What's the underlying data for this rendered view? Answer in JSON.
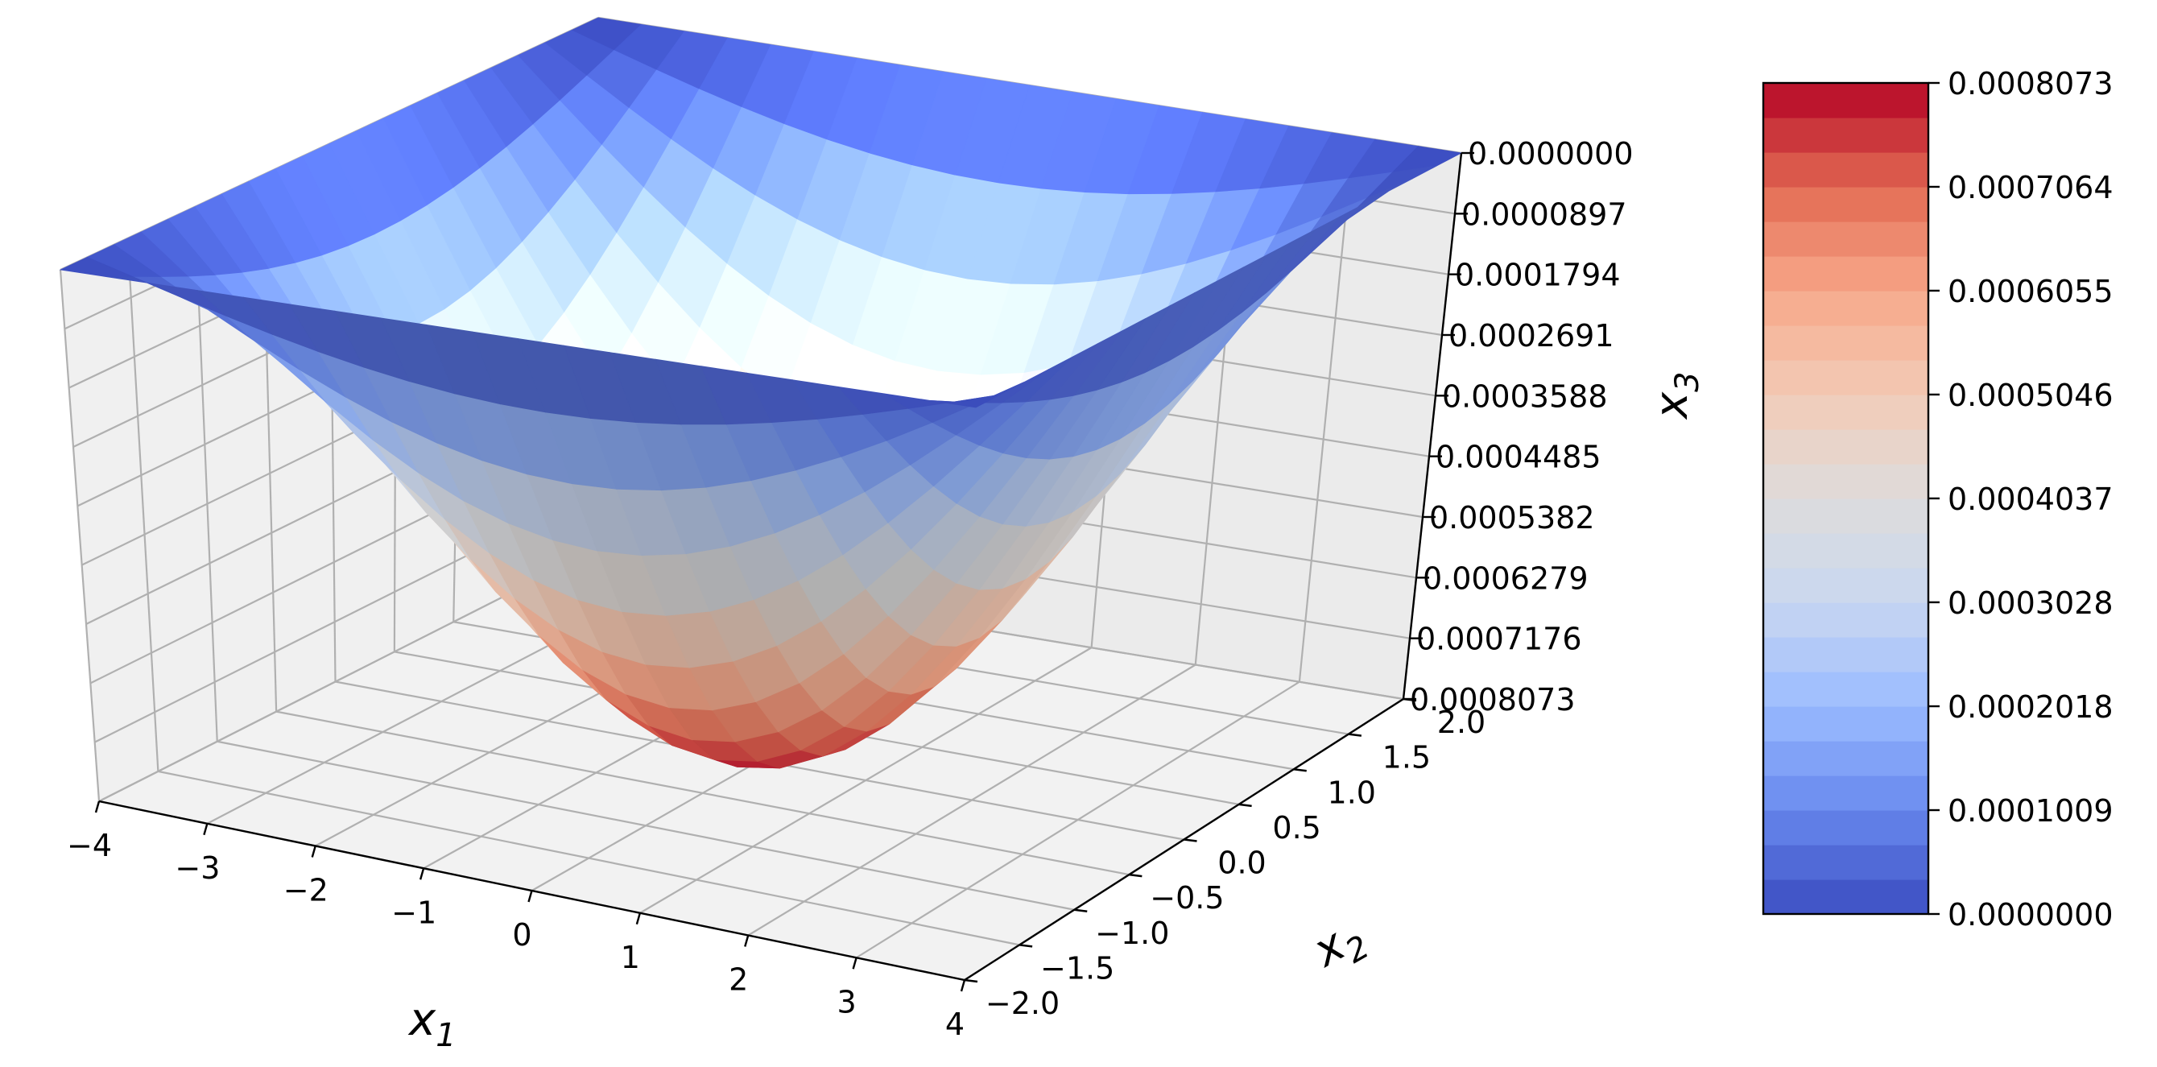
{
  "chart_data": {
    "type": "surface3d",
    "title": "",
    "colormap": "coolwarm",
    "colormap_stops": [
      "#3b4cc0",
      "#6788ee",
      "#9abbff",
      "#c9d7f0",
      "#dddcdc",
      "#f2cbb7",
      "#f7a889",
      "#e26952",
      "#b40426"
    ],
    "axes": {
      "x": {
        "label": "x",
        "label_sub": "1",
        "range": [
          -4,
          4
        ],
        "ticks": [
          "−4",
          "−3",
          "−2",
          "−1",
          "0",
          "1",
          "2",
          "3",
          "4"
        ]
      },
      "y": {
        "label": "x",
        "label_sub": "2",
        "range": [
          -2,
          2
        ],
        "ticks": [
          "−2.0",
          "−1.5",
          "−1.0",
          "−0.5",
          "0.0",
          "0.5",
          "1.0",
          "1.5",
          "2.0"
        ]
      },
      "z": {
        "label": "x",
        "label_sub": "3",
        "inverted": true,
        "range": [
          0.0,
          0.0008073
        ],
        "ticks": [
          "0.0000000",
          "0.0000897",
          "0.0001794",
          "0.0002691",
          "0.0003588",
          "0.0004485",
          "0.0005382",
          "0.0006279",
          "0.0007176",
          "0.0008073"
        ]
      }
    },
    "surface": {
      "peak_value": 0.0008073,
      "peak_at": [
        0,
        0
      ],
      "boundary_value": 0.0,
      "shape": "bowl; value largest at center, zero on the boundary, shown with z axis inverted",
      "grid": {
        "nx": 21,
        "ny": 21
      }
    },
    "colorbar": {
      "placement": "right",
      "levels": 24,
      "ticks": [
        "0.0000000",
        "0.0001009",
        "0.0002018",
        "0.0003028",
        "0.0004037",
        "0.0005046",
        "0.0006055",
        "0.0007064",
        "0.0008073"
      ]
    },
    "grid": true
  }
}
